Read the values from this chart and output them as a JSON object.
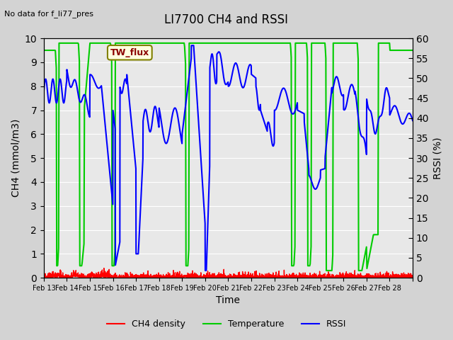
{
  "title": "LI7700 CH4 and RSSI",
  "top_left_text": "No data for f_li77_pres",
  "xlabel": "Time",
  "ylabel_left": "CH4 (mmol/m3)",
  "ylabel_right": "RSSI (%)",
  "ylim_left": [
    0.0,
    10.0
  ],
  "ylim_right": [
    0,
    60
  ],
  "yticks_left": [
    0.0,
    1.0,
    2.0,
    3.0,
    4.0,
    5.0,
    6.0,
    7.0,
    8.0,
    9.0,
    10.0
  ],
  "yticks_right": [
    0,
    5,
    10,
    15,
    20,
    25,
    30,
    35,
    40,
    45,
    50,
    55,
    60
  ],
  "xtick_positions": [
    0,
    1,
    2,
    3,
    4,
    5,
    6,
    7,
    8,
    9,
    10,
    11,
    12,
    13,
    14,
    15,
    16
  ],
  "xtick_labels": [
    "Feb 13",
    "Feb 14",
    "Feb 15",
    "Feb 16",
    "Feb 17",
    "Feb 18",
    "Feb 19",
    "Feb 20",
    "Feb 21",
    "Feb 22",
    "Feb 23",
    "Feb 24",
    "Feb 25",
    "Feb 26",
    "Feb 27",
    "Feb 28",
    ""
  ],
  "legend_label_ch4": "CH4 density",
  "legend_label_temp": "Temperature",
  "legend_label_rssi": "RSSI",
  "annotation_text": "TW_flux",
  "color_ch4": "#ff0000",
  "color_temp": "#00cc00",
  "color_rssi": "#0000ff",
  "bg_color": "#d3d3d3",
  "plot_bg_color": "#e8e8e8",
  "linewidth_ch4": 1.0,
  "linewidth_temp": 1.5,
  "linewidth_rssi": 1.5,
  "n_days": 16
}
